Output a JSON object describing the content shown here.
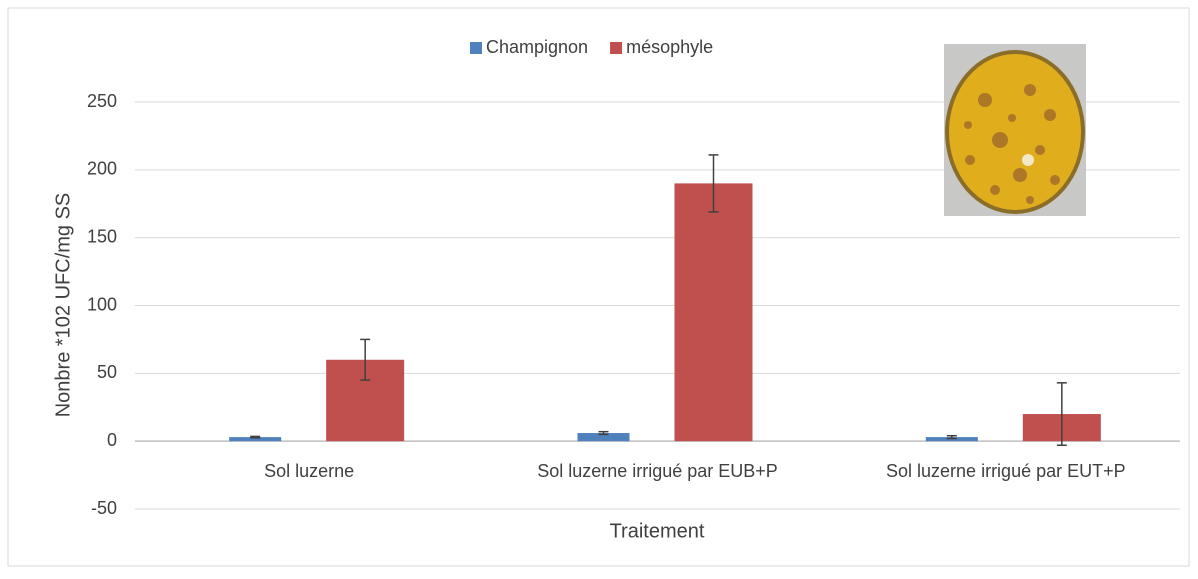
{
  "chart_data": {
    "type": "bar",
    "x_label": "Traitement",
    "y_label": "Nonbre *102 UFC/mg SS",
    "categories": [
      "Sol luzerne",
      "Sol luzerne irrigué par EUB+P",
      "Sol luzerne irrigué par EUT+P"
    ],
    "series": [
      {
        "name": "Champignon",
        "color": "#4f81bd",
        "values": [
          3,
          6,
          3
        ],
        "errors": [
          0.5,
          1,
          1
        ]
      },
      {
        "name": "mésophyle",
        "color": "#c0504d",
        "values": [
          60,
          190,
          20
        ],
        "errors": [
          15,
          21,
          23
        ]
      }
    ],
    "ylim": [
      -50,
      250
    ],
    "yticks": [
      -50,
      0,
      50,
      100,
      150,
      200,
      250
    ],
    "grid": true,
    "legend": "top"
  }
}
